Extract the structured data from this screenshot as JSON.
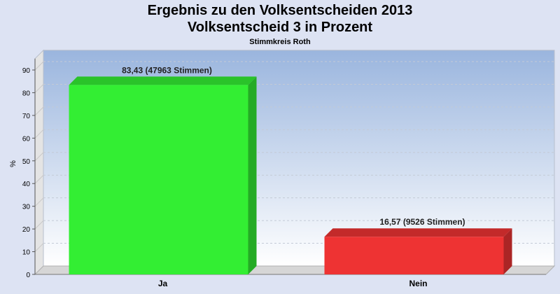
{
  "header": {
    "title_line1": "Ergebnis zu den Volksentscheiden 2013",
    "title_line2": "Volksentscheid 3 in Prozent",
    "subtitle": "Stimmkreis Roth"
  },
  "chart_data": {
    "type": "bar",
    "title": "Ergebnis zu den Volksentscheiden 2013 / Volksentscheid 3 in Prozent",
    "subtitle": "Stimmkreis Roth",
    "categories": [
      "Ja",
      "Nein"
    ],
    "values": [
      83.43,
      16.57
    ],
    "data_labels": [
      "83,43 (47963 Stimmen)",
      "16,57 (9526 Stimmen)"
    ],
    "colors": [
      "#33ee33",
      "#ee3333"
    ],
    "ylabel": "%",
    "xlabel": "",
    "ylim": [
      0,
      95
    ],
    "yticks": [
      0,
      10,
      20,
      30,
      40,
      50,
      60,
      70,
      80,
      90
    ],
    "grid": true,
    "legend": "none"
  }
}
